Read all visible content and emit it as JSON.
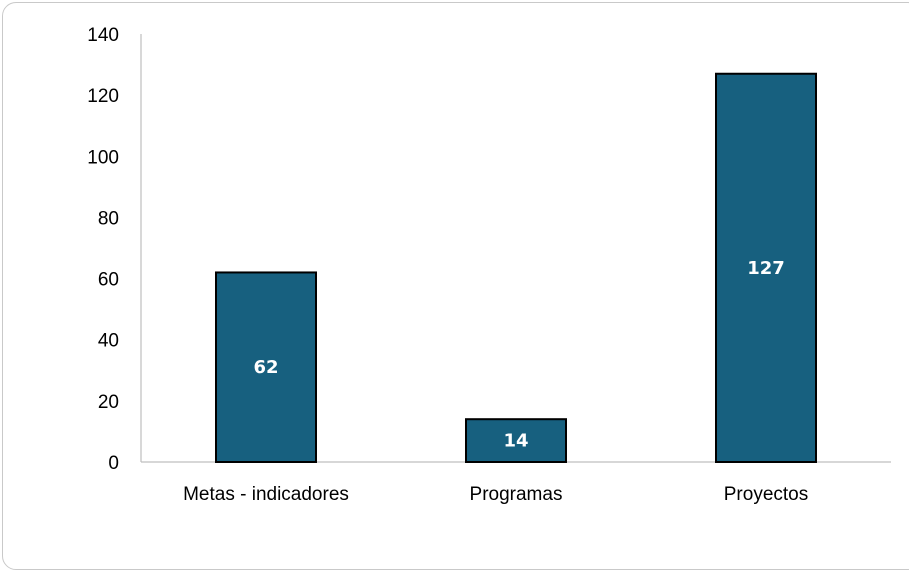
{
  "chart_data": {
    "type": "bar",
    "categories": [
      "Metas - indicadores",
      "Programas",
      "Proyectos"
    ],
    "values": [
      62,
      14,
      127
    ],
    "data_labels": [
      "62",
      "14",
      "127"
    ],
    "title": "",
    "xlabel": "",
    "ylabel": "",
    "ylim": [
      0,
      140
    ],
    "yticks": [
      0,
      20,
      40,
      60,
      80,
      100,
      120,
      140
    ],
    "grid": false,
    "legend": "none",
    "bar_color": "#17607f",
    "bar_edge_color": "#000000"
  }
}
